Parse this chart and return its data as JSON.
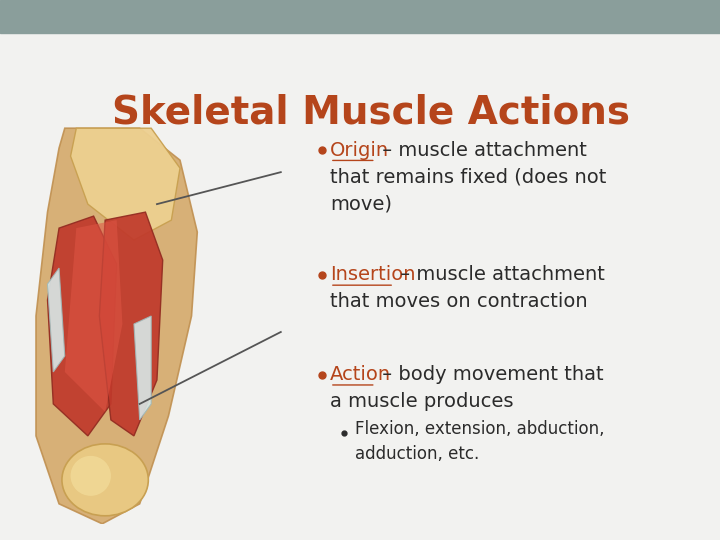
{
  "title": "Skeletal Muscle Actions",
  "title_color": "#B5451B",
  "title_fontsize": 28,
  "bg_color": "#F2F2F0",
  "header_bar_color": "#8A9E9B",
  "header_bar_height": 0.062,
  "text_color": "#2B2B2B",
  "accent_color": "#B5451B",
  "bullet1_label": "Origin",
  "bullet1_rest": " – muscle attachment",
  "bullet1_line2": "that remains fixed (does not",
  "bullet1_line3": "move)",
  "bullet2_label": "Insertion",
  "bullet2_rest": " – muscle attachment",
  "bullet2_line2": "that moves on contraction",
  "bullet3_label": "Action",
  "bullet3_rest": " – body movement that",
  "bullet3_line2": "a muscle produces",
  "subbullet_line1": "Flexion, extension, abduction,",
  "subbullet_line2": "adduction, etc.",
  "font_size_bullet": 14,
  "font_size_sub": 12
}
